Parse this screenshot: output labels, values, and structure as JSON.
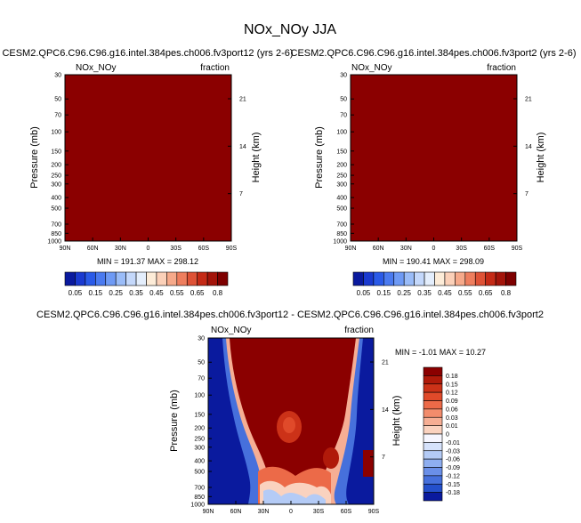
{
  "figure_title": "NOx_NOy JJA",
  "colors": {
    "field_dark_red": "#8b0000",
    "diff_dark_blue": "#0a1a9e"
  },
  "chart_data": [
    {
      "type": "heatmap",
      "id": "case1",
      "title": "CESM2.QPC6.C96.C96.g16.intel.384pes.ch006.fv3port12 (yrs 2-6)",
      "left_label": "NOx_NOy",
      "right_label": "fraction",
      "ylabel": "Pressure (mb)",
      "y2label": "Height (km)",
      "x_ticks": [
        "90N",
        "60N",
        "30N",
        "0",
        "30S",
        "60S",
        "90S"
      ],
      "y_ticks": [
        30,
        50,
        70,
        100,
        150,
        200,
        250,
        300,
        400,
        500,
        700,
        850,
        1000
      ],
      "height_ticks": [
        21,
        14,
        7
      ],
      "ylim": [
        30,
        1000
      ],
      "min_max_text": "MIN = 191.37   MAX = 298.12",
      "min": 191.37,
      "max": 298.12,
      "fill": "uniform maximum (dark red)"
    },
    {
      "type": "heatmap",
      "id": "case2",
      "title": "CESM2.QPC6.C96.C96.g16.intel.384pes.ch006.fv3port2 (yrs 2-6)",
      "left_label": "NOx_NOy",
      "right_label": "fraction",
      "ylabel": "Pressure (mb)",
      "y2label": "Height (km)",
      "x_ticks": [
        "90N",
        "60N",
        "30N",
        "0",
        "30S",
        "60S",
        "90S"
      ],
      "y_ticks": [
        30,
        50,
        70,
        100,
        150,
        200,
        250,
        300,
        400,
        500,
        700,
        850,
        1000
      ],
      "height_ticks": [
        21,
        14,
        7
      ],
      "ylim": [
        30,
        1000
      ],
      "min_max_text": "MIN = 190.41   MAX = 298.09",
      "min": 190.41,
      "max": 298.09,
      "fill": "uniform maximum (dark red)"
    },
    {
      "type": "heatmap",
      "id": "diff",
      "title": "CESM2.QPC6.C96.C96.g16.intel.384pes.ch006.fv3port12 - CESM2.QPC6.C96.C96.g16.intel.384pes.ch006.fv3port2",
      "left_label": "NOx_NOy",
      "right_label": "fraction",
      "ylabel": "Pressure (mb)",
      "y2label": "Height (km)",
      "x_ticks": [
        "90N",
        "60N",
        "30N",
        "0",
        "30S",
        "60S",
        "90S"
      ],
      "y_ticks": [
        30,
        50,
        70,
        100,
        150,
        200,
        250,
        300,
        400,
        500,
        700,
        850,
        1000
      ],
      "height_ticks": [
        21,
        14,
        7
      ],
      "ylim": [
        30,
        1000
      ],
      "min_max_text": "MIN = -1.01  MAX = 10.27",
      "min": -1.01,
      "max": 10.27
    }
  ],
  "colorbar_main": {
    "labels": [
      "0.05",
      "0.15",
      "0.25",
      "0.35",
      "0.45",
      "0.55",
      "0.65",
      "0.8"
    ],
    "colors": [
      "#0a1a9e",
      "#1a3ad0",
      "#2a5ae8",
      "#4a7af0",
      "#6e9af5",
      "#9abcf8",
      "#c4d8fb",
      "#e4eefc",
      "#fdecd8",
      "#fbd0b8",
      "#f6a98a",
      "#ee7e5e",
      "#de5236",
      "#c42a16",
      "#a3140a",
      "#7e0000"
    ]
  },
  "colorbar_diff": {
    "labels": [
      "0.18",
      "0.15",
      "0.12",
      "0.09",
      "0.06",
      "0.03",
      "0.01",
      "0",
      "-0.01",
      "-0.03",
      "-0.06",
      "-0.09",
      "-0.12",
      "-0.15",
      "-0.18"
    ],
    "colors": [
      "#8b0000",
      "#b01a0a",
      "#cc3218",
      "#e04a2a",
      "#ec6a48",
      "#f28c6c",
      "#f6ae94",
      "#fad2bf",
      "#f6f6ff",
      "#d6e2fb",
      "#b4cbf6",
      "#8eaef0",
      "#6a8fe8",
      "#4670dc",
      "#2450cc",
      "#0a1a9e"
    ]
  }
}
